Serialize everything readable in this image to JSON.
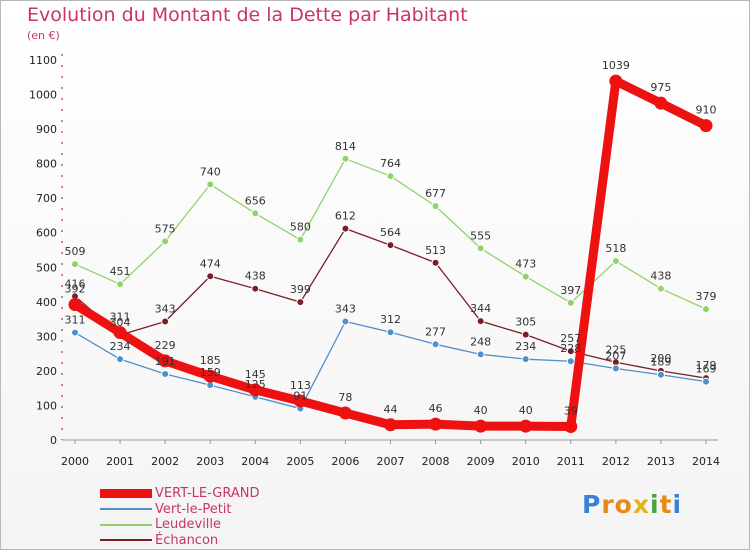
{
  "title": "Evolution du Montant de la Dette par Habitant",
  "subtitle": "(en €)",
  "logo": {
    "text": "Proxiti",
    "letters": [
      "P",
      "r",
      "o",
      "x",
      "i",
      "t",
      "i"
    ],
    "colors": [
      "#3a7fd8",
      "#e88a1a",
      "#e88a1a",
      "#e4b21b",
      "#4aa33c",
      "#e88a1a",
      "#3a7fd8"
    ]
  },
  "chart_data": {
    "type": "line",
    "categories": [
      "2000",
      "2001",
      "2002",
      "2003",
      "2004",
      "2005",
      "2006",
      "2007",
      "2008",
      "2009",
      "2010",
      "2011",
      "2012",
      "2013",
      "2014"
    ],
    "yticks": [
      0,
      100,
      200,
      300,
      400,
      500,
      600,
      700,
      800,
      900,
      1000,
      1100
    ],
    "ylim": [
      0,
      1100
    ],
    "grid": false,
    "legend_position": "bottom-left",
    "series": [
      {
        "name": "Échancon",
        "color": "#7a1e26",
        "values": [
          416,
          304,
          343,
          474,
          438,
          399,
          612,
          564,
          513,
          344,
          305,
          257,
          225,
          200,
          179
        ]
      },
      {
        "name": "Leudeville",
        "color": "#8fd36a",
        "values": [
          509,
          451,
          575,
          740,
          656,
          580,
          814,
          764,
          677,
          555,
          473,
          397,
          518,
          438,
          379
        ]
      },
      {
        "name": "Vert-le-Petit",
        "color": "#4f8fca",
        "values": [
          311,
          234,
          191,
          159,
          125,
          91,
          343,
          312,
          277,
          248,
          234,
          228,
          207,
          189,
          169
        ]
      },
      {
        "name": "VERT-LE-GRAND",
        "color": "#ee1111",
        "values": [
          392,
          311,
          229,
          185,
          145,
          113,
          78,
          44,
          46,
          40,
          40,
          39,
          1039,
          975,
          910
        ]
      }
    ],
    "legend_order": [
      3,
      2,
      1,
      0
    ]
  }
}
